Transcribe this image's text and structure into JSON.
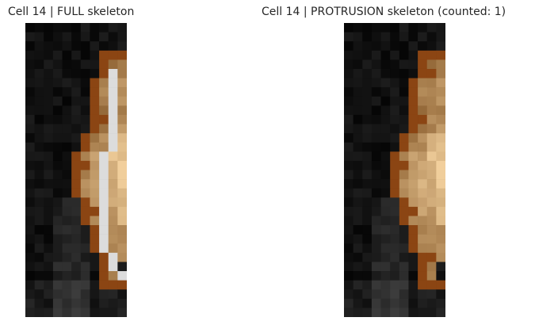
{
  "figure": {
    "panels": [
      {
        "title": "Cell 14 | FULL skeleton",
        "overlay": "full-skeleton"
      },
      {
        "title": "Cell 14 | PROTRUSION skeleton (counted: 1)",
        "overlay": "protrusion-skeleton",
        "counted": 1
      }
    ],
    "colors": {
      "mask_outline": "#8B4513",
      "mask_fill_low": "#8a5e2e",
      "mask_fill_high": "#f5d3a0",
      "skeleton": "#dcdcdc",
      "background_low": "#000000",
      "background_high": "#808080"
    }
  }
}
